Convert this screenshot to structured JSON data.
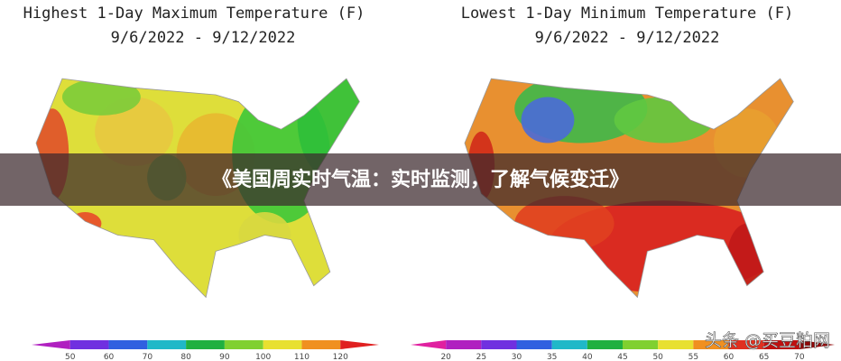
{
  "left_map": {
    "title": "Highest 1-Day Maximum Temperature (F)",
    "dates": "9/6/2022 - 9/12/2022",
    "scale": [
      50,
      60,
      70,
      80,
      90,
      100,
      110,
      120
    ]
  },
  "right_map": {
    "title": "Lowest 1-Day Minimum Temperature (F)",
    "dates": "9/6/2022 - 9/12/2022",
    "scale": [
      20,
      25,
      30,
      35,
      40,
      45,
      50,
      55,
      60,
      65,
      70
    ]
  },
  "banner": "《美国周实时气温：实时监测，了解气候变迁》",
  "watermark": "头条 @买豆粕网"
}
